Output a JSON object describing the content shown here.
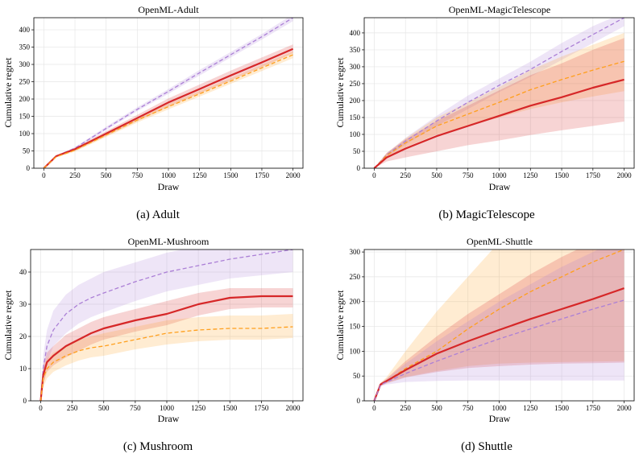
{
  "chart_data": [
    {
      "type": "line",
      "title": "OpenML-Adult",
      "caption": "(a) Adult",
      "xlabel": "Draw",
      "ylabel": "Cumulative regret",
      "xlim": [
        -80,
        2080
      ],
      "ylim": [
        0,
        435
      ],
      "xticks": [
        0,
        250,
        500,
        750,
        1000,
        1250,
        1500,
        1750,
        2000
      ],
      "yticks": [
        0,
        50,
        100,
        150,
        200,
        250,
        300,
        350,
        400
      ],
      "grid": true,
      "series": [
        {
          "color": "#ab7fd6",
          "style": "dashed",
          "x": [
            0,
            100,
            250,
            500,
            750,
            1000,
            1250,
            1500,
            1750,
            2000
          ],
          "y": [
            0,
            35,
            58,
            115,
            170,
            222,
            276,
            328,
            380,
            435
          ],
          "lower": [
            0,
            33,
            55,
            110,
            165,
            215,
            268,
            320,
            372,
            425
          ],
          "upper": [
            0,
            37,
            61,
            120,
            176,
            229,
            284,
            336,
            388,
            445
          ]
        },
        {
          "color": "#d62728",
          "style": "solid",
          "x": [
            0,
            100,
            250,
            500,
            750,
            1000,
            1250,
            1500,
            1750,
            2000
          ],
          "y": [
            0,
            35,
            55,
            100,
            145,
            190,
            229,
            268,
            306,
            345
          ],
          "lower": [
            0,
            33,
            51,
            93,
            136,
            178,
            216,
            254,
            292,
            332
          ],
          "upper": [
            0,
            37,
            59,
            107,
            154,
            202,
            242,
            282,
            320,
            358
          ]
        },
        {
          "color": "#ff9f1c",
          "style": "dashed",
          "x": [
            0,
            100,
            250,
            500,
            750,
            1000,
            1250,
            1500,
            1750,
            2000
          ],
          "y": [
            0,
            33,
            52,
            96,
            139,
            178,
            215,
            252,
            290,
            328
          ],
          "lower": [
            0,
            31,
            48,
            90,
            132,
            170,
            207,
            244,
            281,
            318
          ],
          "upper": [
            0,
            35,
            56,
            102,
            146,
            186,
            223,
            260,
            299,
            338
          ]
        }
      ]
    },
    {
      "type": "line",
      "title": "OpenML-MagicTelescope",
      "caption": "(b) MagicTelescope",
      "xlabel": "Draw",
      "ylabel": "Cumulative regret",
      "xlim": [
        -80,
        2080
      ],
      "ylim": [
        0,
        445
      ],
      "xticks": [
        0,
        250,
        500,
        750,
        1000,
        1250,
        1500,
        1750,
        2000
      ],
      "yticks": [
        0,
        50,
        100,
        150,
        200,
        250,
        300,
        350,
        400
      ],
      "grid": true,
      "series": [
        {
          "color": "#ab7fd6",
          "style": "dashed",
          "x": [
            0,
            100,
            250,
            500,
            750,
            1000,
            1250,
            1500,
            1750,
            2000
          ],
          "y": [
            0,
            40,
            80,
            140,
            195,
            245,
            292,
            345,
            395,
            445
          ],
          "lower": [
            0,
            35,
            70,
            125,
            175,
            225,
            270,
            320,
            370,
            420
          ],
          "upper": [
            0,
            45,
            90,
            155,
            215,
            265,
            315,
            370,
            420,
            460
          ]
        },
        {
          "color": "#ff9f1c",
          "style": "dashed",
          "x": [
            0,
            100,
            250,
            500,
            750,
            1000,
            1250,
            1500,
            1750,
            2000
          ],
          "y": [
            0,
            38,
            75,
            125,
            160,
            195,
            232,
            262,
            290,
            316
          ],
          "lower": [
            0,
            30,
            62,
            100,
            125,
            150,
            175,
            195,
            212,
            228
          ],
          "upper": [
            0,
            45,
            88,
            150,
            195,
            240,
            290,
            330,
            365,
            400
          ]
        },
        {
          "color": "#d62728",
          "style": "solid",
          "x": [
            0,
            100,
            250,
            500,
            750,
            1000,
            1250,
            1500,
            1750,
            2000
          ],
          "y": [
            0,
            32,
            58,
            95,
            125,
            155,
            185,
            210,
            238,
            262
          ],
          "lower": [
            0,
            20,
            32,
            50,
            68,
            82,
            98,
            112,
            125,
            138
          ],
          "upper": [
            0,
            45,
            85,
            140,
            185,
            230,
            275,
            310,
            350,
            385
          ]
        }
      ]
    },
    {
      "type": "line",
      "title": "OpenML-Mushroom",
      "caption": "(c) Mushroom",
      "xlabel": "Draw",
      "ylabel": "Cumulative regret",
      "xlim": [
        -80,
        2080
      ],
      "ylim": [
        0,
        47
      ],
      "xticks": [
        0,
        250,
        500,
        750,
        1000,
        1250,
        1500,
        1750,
        2000
      ],
      "yticks": [
        0,
        10,
        20,
        30,
        40
      ],
      "grid": true,
      "series": [
        {
          "color": "#ab7fd6",
          "style": "dashed",
          "x": [
            0,
            20,
            50,
            100,
            200,
            300,
            400,
            500,
            750,
            1000,
            1250,
            1500,
            1750,
            2000
          ],
          "y": [
            0,
            10,
            17,
            22,
            27,
            30,
            32,
            33.5,
            37,
            40,
            42,
            44,
            45.5,
            47
          ],
          "lower": [
            0,
            6,
            12,
            17,
            21,
            24,
            26,
            27.5,
            31,
            34,
            36,
            38,
            39,
            40
          ],
          "upper": [
            0,
            14,
            22,
            28,
            33,
            36,
            38,
            40,
            43,
            46,
            48,
            50,
            51,
            52
          ]
        },
        {
          "color": "#d62728",
          "style": "solid",
          "x": [
            0,
            20,
            50,
            100,
            200,
            300,
            400,
            500,
            750,
            1000,
            1250,
            1500,
            1750,
            2000
          ],
          "y": [
            0,
            8,
            12,
            14,
            17,
            19,
            21,
            22.5,
            25,
            27,
            30,
            32,
            32.5,
            32.5
          ],
          "lower": [
            0,
            5,
            9,
            11,
            13.5,
            15.5,
            17.5,
            19,
            21.5,
            23.5,
            26.5,
            28.5,
            29,
            29
          ],
          "upper": [
            0,
            11,
            15,
            17,
            20.5,
            22.5,
            24.5,
            26,
            28.5,
            31,
            33.5,
            35,
            35,
            35
          ]
        },
        {
          "color": "#ff9f1c",
          "style": "dashed",
          "x": [
            0,
            20,
            50,
            100,
            200,
            300,
            400,
            500,
            750,
            1000,
            1250,
            1500,
            1750,
            2000
          ],
          "y": [
            0,
            7,
            10,
            12,
            14,
            15.5,
            16.5,
            17,
            19,
            21,
            22,
            22.5,
            22.5,
            23
          ],
          "lower": [
            0,
            4,
            7,
            9,
            11,
            12.5,
            13.5,
            14,
            16,
            17.5,
            18.5,
            19,
            19,
            19.5
          ],
          "upper": [
            0,
            10,
            13,
            15,
            17,
            19,
            20,
            21,
            23,
            25,
            26,
            26.5,
            26.5,
            27
          ]
        }
      ]
    },
    {
      "type": "line",
      "title": "OpenML-Shuttle",
      "caption": "(d) Shuttle",
      "xlabel": "Draw",
      "ylabel": "Cumulative regret",
      "xlim": [
        -80,
        2080
      ],
      "ylim": [
        0,
        305
      ],
      "xticks": [
        0,
        250,
        500,
        750,
        1000,
        1250,
        1500,
        1750,
        2000
      ],
      "yticks": [
        0,
        50,
        100,
        150,
        200,
        250,
        300
      ],
      "grid": true,
      "series": [
        {
          "color": "#ff9f1c",
          "style": "dashed",
          "x": [
            0,
            50,
            100,
            250,
            500,
            750,
            1000,
            1250,
            1500,
            1750,
            2000
          ],
          "y": [
            0,
            33,
            40,
            65,
            100,
            145,
            185,
            220,
            250,
            280,
            305
          ],
          "lower": [
            0,
            30,
            36,
            48,
            60,
            70,
            75,
            77,
            78,
            79,
            80
          ],
          "upper": [
            0,
            36,
            48,
            100,
            180,
            250,
            320,
            360,
            400,
            430,
            460
          ]
        },
        {
          "color": "#d62728",
          "style": "solid",
          "x": [
            0,
            50,
            100,
            250,
            500,
            750,
            1000,
            1250,
            1500,
            1750,
            2000
          ],
          "y": [
            0,
            33,
            40,
            62,
            95,
            120,
            143,
            165,
            185,
            205,
            227
          ],
          "lower": [
            0,
            30,
            35,
            47,
            58,
            66,
            70,
            73,
            75,
            76,
            77
          ],
          "upper": [
            0,
            36,
            45,
            80,
            130,
            175,
            215,
            255,
            290,
            320,
            345
          ]
        },
        {
          "color": "#ab7fd6",
          "style": "dashed",
          "x": [
            0,
            50,
            100,
            250,
            500,
            750,
            1000,
            1250,
            1500,
            1750,
            2000
          ],
          "y": [
            0,
            32,
            38,
            55,
            80,
            103,
            125,
            145,
            165,
            185,
            203
          ],
          "lower": [
            0,
            29,
            33,
            38,
            40,
            41,
            41,
            41,
            41,
            41,
            41
          ],
          "upper": [
            0,
            35,
            44,
            75,
            120,
            160,
            200,
            235,
            270,
            300,
            330
          ]
        }
      ]
    }
  ]
}
